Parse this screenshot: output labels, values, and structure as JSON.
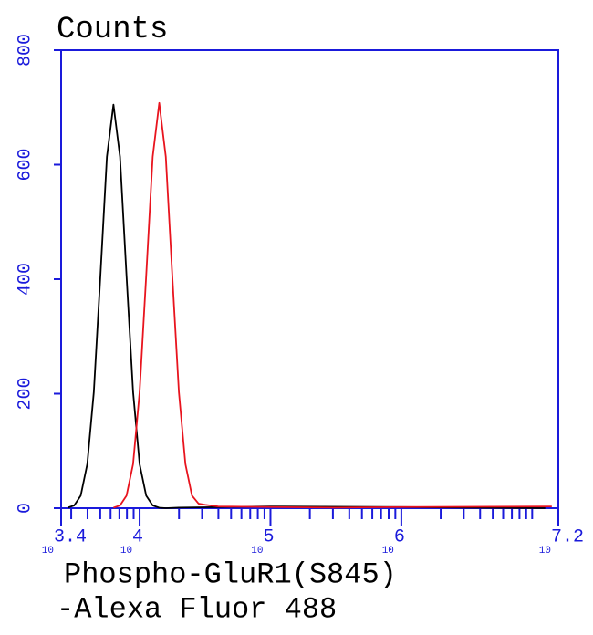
{
  "chart_data": {
    "type": "line",
    "title": "Counts",
    "xlabel": [
      "Phospho-GluR1(S845)",
      "-Alexa Fluor 488"
    ],
    "xscale": "log",
    "xtick_base": "10",
    "xlim": [
      2511.886,
      15848932
    ],
    "xticks": [
      {
        "value": 2511.886,
        "label": "3.4"
      },
      {
        "value": 10000,
        "label": "4"
      },
      {
        "value": 100000,
        "label": "5"
      },
      {
        "value": 1000000,
        "label": "6"
      },
      {
        "value": 15848932,
        "label": "7.2"
      }
    ],
    "xminorticks": [
      3000,
      4000,
      5000,
      6000,
      7000,
      8000,
      9000,
      20000,
      30000,
      40000,
      50000,
      60000,
      70000,
      80000,
      90000,
      200000,
      300000,
      400000,
      500000,
      600000,
      700000,
      800000,
      900000,
      2000000,
      3000000,
      4000000,
      5000000,
      6000000,
      7000000,
      8000000,
      9000000,
      10000000
    ],
    "ylim": [
      0,
      800
    ],
    "yticks": [
      0,
      200,
      400,
      600,
      800
    ],
    "axis_color": "#1a1adb",
    "series": [
      {
        "color": "#000000",
        "x": [
          2818,
          3162,
          3548,
          3981,
          4467,
          5012,
          5623,
          6310,
          7079,
          7943,
          8913,
          10000,
          11220,
          12589,
          14125,
          15849,
          19953,
          100000,
          1000000,
          12589254
        ],
        "y": [
          0.8,
          4.8,
          22,
          77,
          203,
          405,
          614,
          705,
          614,
          405,
          203,
          77,
          22,
          4.8,
          0.8,
          0,
          1,
          3,
          2,
          0
        ]
      },
      {
        "color": "#e8141e",
        "x": [
          6310,
          7079,
          7943,
          8913,
          10000,
          11220,
          12589,
          14125,
          15849,
          17783,
          19953,
          22387,
          25119,
          28184,
          31623,
          39811,
          100000,
          316228,
          1000000,
          14125375
        ],
        "y": [
          0.8,
          4.8,
          22,
          77,
          203,
          405,
          614,
          708,
          614,
          405,
          203,
          77,
          22,
          8,
          6,
          3,
          2,
          1,
          2,
          3
        ]
      }
    ]
  }
}
